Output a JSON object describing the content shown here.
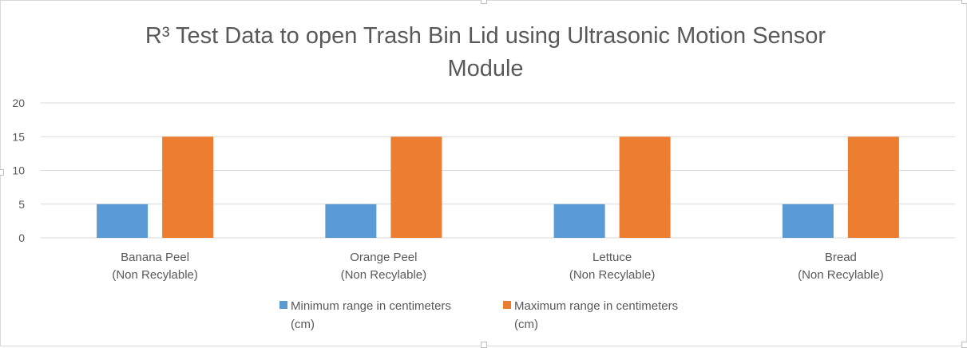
{
  "chart_data": {
    "type": "bar",
    "title_line1": "R³ Test Data to open Trash Bin Lid using Ultrasonic Motion Sensor",
    "title_line2": "Module",
    "categories": [
      {
        "line1": "Banana Peel",
        "line2": "(Non Recylable)"
      },
      {
        "line1": "Orange Peel",
        "line2": "(Non Recylable)"
      },
      {
        "line1": "Lettuce",
        "line2": "(Non Recylable)"
      },
      {
        "line1": "Bread",
        "line2": "(Non Recylable)"
      }
    ],
    "series": [
      {
        "name_line1": "Minimum range in centimeters",
        "name_line2": "(cm)",
        "color": "#5b9bd5",
        "values": [
          5,
          5,
          5,
          5
        ]
      },
      {
        "name_line1": "Maximum range in centimeters",
        "name_line2": "(cm)",
        "color": "#ed7d31",
        "values": [
          15,
          15,
          15,
          15
        ]
      }
    ],
    "yticks": [
      "0",
      "5",
      "10",
      "15",
      "20"
    ],
    "ylim": [
      0,
      20
    ],
    "grid": true,
    "legend_position": "bottom",
    "xlabel": "",
    "ylabel": ""
  }
}
